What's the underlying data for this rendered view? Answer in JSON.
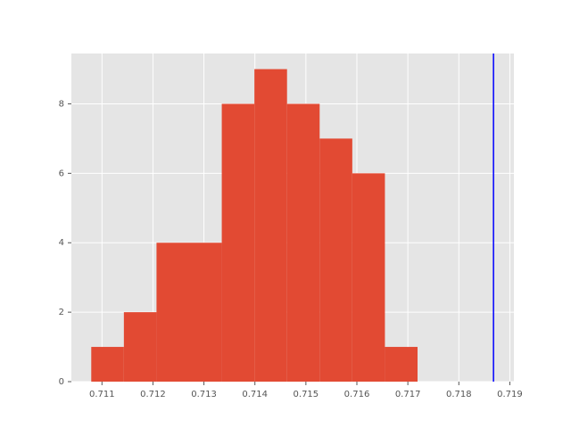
{
  "chart_data": {
    "type": "histogram",
    "bins": [
      0.71079,
      0.71143,
      0.71207,
      0.71271,
      0.71335,
      0.71399,
      0.71463,
      0.71527,
      0.71591,
      0.71655,
      0.71719
    ],
    "values": [
      1,
      2,
      4,
      4,
      8,
      9,
      8,
      7,
      6,
      1
    ],
    "color": "#E24A33",
    "vline": {
      "x": 0.71868,
      "color": "#0000ff"
    },
    "xlim": [
      0.7104,
      0.71908
    ],
    "ylim": [
      0,
      9.45
    ],
    "xticks": [
      0.711,
      0.712,
      0.713,
      0.714,
      0.715,
      0.716,
      0.717,
      0.718,
      0.719
    ],
    "yticks": [
      0,
      2,
      4,
      6,
      8
    ],
    "grid": true
  }
}
